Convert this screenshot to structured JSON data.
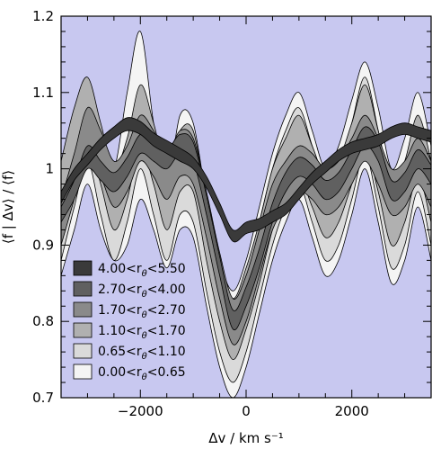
{
  "chart_data": {
    "type": "area",
    "xlabel": "Δv / km s⁻¹",
    "ylabel": "⟨f | Δv⟩ / ⟨f⟩",
    "xlim": [
      -3500,
      3500
    ],
    "ylim": [
      0.7,
      1.2
    ],
    "x_ticks": [
      -2000,
      0,
      2000
    ],
    "y_ticks": [
      0.7,
      0.8,
      0.9,
      1,
      1.1,
      1.2
    ],
    "x_tick_labels": [
      "−2000",
      "0",
      "2000"
    ],
    "y_tick_labels": [
      "0.7",
      "0.8",
      "0.9",
      "1",
      "1.1",
      "1.2"
    ],
    "legend_position": "bottom-left",
    "grid": false,
    "plot_background": "#c8c8f0",
    "x": [
      -3500,
      -3250,
      -3000,
      -2750,
      -2500,
      -2250,
      -2000,
      -1750,
      -1500,
      -1250,
      -1000,
      -750,
      -500,
      -250,
      0,
      250,
      500,
      750,
      1000,
      1250,
      1500,
      1750,
      2000,
      2250,
      2500,
      2750,
      3000,
      3250,
      3500
    ],
    "series": [
      {
        "name": "4.00<rθ<5.50",
        "legend_label": "4.00<r",
        "legend_sub": "θ",
        "legend_suffix": "<5.50",
        "color": "#3a3a3a",
        "lower": [
          0.955,
          0.985,
          1.005,
          1.025,
          1.04,
          1.05,
          1.045,
          1.03,
          1.02,
          1.01,
          1.0,
          0.975,
          0.94,
          0.905,
          0.915,
          0.92,
          0.93,
          0.94,
          0.96,
          0.98,
          0.995,
          1.01,
          1.02,
          1.025,
          1.03,
          1.04,
          1.045,
          1.04,
          1.035
        ],
        "upper": [
          0.97,
          1.0,
          1.02,
          1.04,
          1.055,
          1.067,
          1.062,
          1.047,
          1.037,
          1.027,
          1.015,
          0.99,
          0.955,
          0.92,
          0.93,
          0.935,
          0.945,
          0.955,
          0.975,
          0.995,
          1.01,
          1.025,
          1.035,
          1.04,
          1.045,
          1.055,
          1.06,
          1.055,
          1.05
        ]
      },
      {
        "name": "2.70<rθ<4.00",
        "legend_label": "2.70<r",
        "legend_sub": "θ",
        "legend_suffix": "<4.00",
        "color": "#606060",
        "lower": [
          0.93,
          0.96,
          1.0,
          0.985,
          0.97,
          0.99,
          1.02,
          1.01,
          1.0,
          1.02,
          1.01,
          0.94,
          0.86,
          0.79,
          0.82,
          0.87,
          0.93,
          0.97,
          0.99,
          0.98,
          0.96,
          0.97,
          1.0,
          1.03,
          1.01,
          0.96,
          0.97,
          1.0,
          0.98
        ],
        "upper": [
          0.95,
          0.985,
          1.03,
          1.01,
          0.995,
          1.015,
          1.045,
          1.035,
          1.025,
          1.045,
          1.035,
          0.965,
          0.885,
          0.815,
          0.845,
          0.895,
          0.955,
          0.995,
          1.015,
          1.005,
          0.985,
          0.995,
          1.025,
          1.055,
          1.035,
          0.985,
          0.995,
          1.025,
          1.005
        ]
      },
      {
        "name": "1.70<rθ<2.70",
        "legend_label": "1.70<r",
        "legend_sub": "θ",
        "legend_suffix": "<2.70",
        "color": "#8a8a8a",
        "lower": [
          0.9,
          0.96,
          1.02,
          0.99,
          0.95,
          0.97,
          1.01,
          0.99,
          0.96,
          0.99,
          0.98,
          0.91,
          0.83,
          0.77,
          0.8,
          0.86,
          0.92,
          0.95,
          0.97,
          0.96,
          0.94,
          0.95,
          0.98,
          1.01,
          0.98,
          0.94,
          0.95,
          0.98,
          0.95
        ],
        "upper": [
          0.96,
          1.02,
          1.08,
          1.05,
          1.01,
          1.03,
          1.07,
          1.05,
          1.02,
          1.05,
          1.04,
          0.97,
          0.89,
          0.83,
          0.86,
          0.92,
          0.98,
          1.01,
          1.03,
          1.02,
          1.0,
          1.01,
          1.04,
          1.07,
          1.04,
          1.0,
          1.01,
          1.04,
          1.01
        ]
      },
      {
        "name": "1.10<rθ<1.70",
        "legend_label": "1.10<r",
        "legend_sub": "θ",
        "legend_suffix": "<1.70",
        "color": "#b0b0b0",
        "lower": [
          0.93,
          1.0,
          1.04,
          0.98,
          0.92,
          0.96,
          1.03,
          0.98,
          0.92,
          0.97,
          0.97,
          0.88,
          0.8,
          0.75,
          0.79,
          0.85,
          0.92,
          0.96,
          0.99,
          0.95,
          0.91,
          0.93,
          0.98,
          1.03,
          0.97,
          0.9,
          0.93,
          0.99,
          0.93
        ],
        "upper": [
          1.01,
          1.08,
          1.12,
          1.06,
          1.0,
          1.04,
          1.11,
          1.06,
          1.0,
          1.05,
          1.05,
          0.96,
          0.88,
          0.83,
          0.87,
          0.93,
          1.0,
          1.04,
          1.07,
          1.03,
          0.99,
          1.01,
          1.06,
          1.11,
          1.05,
          0.98,
          1.01,
          1.07,
          1.01
        ]
      },
      {
        "name": "0.65<rθ<1.10",
        "legend_label": "0.65<r",
        "legend_sub": "θ",
        "legend_suffix": "<1.10",
        "color": "#dadada",
        "lower": [
          0.88,
          0.95,
          1.01,
          0.94,
          0.88,
          0.93,
          1.0,
          0.94,
          0.88,
          0.94,
          0.93,
          0.84,
          0.76,
          0.72,
          0.76,
          0.83,
          0.9,
          0.95,
          0.98,
          0.93,
          0.88,
          0.9,
          0.96,
          1.02,
          0.95,
          0.87,
          0.9,
          0.97,
          0.9
        ],
        "upper": [
          0.98,
          1.05,
          1.11,
          1.04,
          0.98,
          1.03,
          1.1,
          1.04,
          0.98,
          1.04,
          1.03,
          0.94,
          0.86,
          0.82,
          0.86,
          0.93,
          1.0,
          1.05,
          1.08,
          1.03,
          0.98,
          1.0,
          1.06,
          1.12,
          1.05,
          0.97,
          1.0,
          1.07,
          1.0
        ]
      },
      {
        "name": "0.00<rθ<0.65",
        "legend_label": "0.00<r",
        "legend_sub": "θ",
        "legend_suffix": "<0.65",
        "color": "#f4f4f4",
        "lower": [
          0.86,
          0.92,
          0.98,
          0.92,
          0.88,
          0.9,
          0.96,
          0.92,
          0.87,
          0.92,
          0.91,
          0.82,
          0.74,
          0.7,
          0.74,
          0.81,
          0.88,
          0.93,
          0.96,
          0.91,
          0.86,
          0.88,
          0.94,
          1.0,
          0.93,
          0.85,
          0.88,
          0.95,
          0.88
        ],
        "upper": [
          0.96,
          1.03,
          1.09,
          1.03,
          1.0,
          1.1,
          1.18,
          1.06,
          0.98,
          1.07,
          1.06,
          0.96,
          0.88,
          0.84,
          0.88,
          0.95,
          1.02,
          1.07,
          1.1,
          1.05,
          1.0,
          1.03,
          1.09,
          1.14,
          1.08,
          1.0,
          1.04,
          1.1,
          1.03
        ]
      }
    ]
  }
}
